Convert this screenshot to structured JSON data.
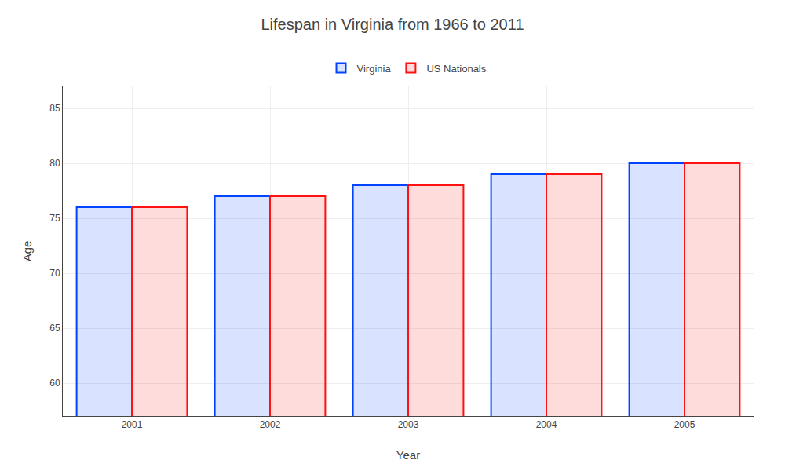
{
  "chart_data": {
    "type": "bar",
    "title": "Lifespan in Virginia from 1966 to 2011",
    "xlabel": "Year",
    "ylabel": "Age",
    "categories": [
      "2001",
      "2002",
      "2003",
      "2004",
      "2005"
    ],
    "series": [
      {
        "name": "Virginia",
        "color": "#0044ff",
        "values": [
          76,
          77,
          78,
          79,
          80
        ]
      },
      {
        "name": "US Nationals",
        "color": "#ff1111",
        "values": [
          76,
          77,
          78,
          79,
          80
        ]
      }
    ],
    "ylim": [
      57,
      87
    ],
    "yticks": [
      60,
      65,
      70,
      75,
      80,
      85
    ],
    "grid": true,
    "legend": "top"
  }
}
